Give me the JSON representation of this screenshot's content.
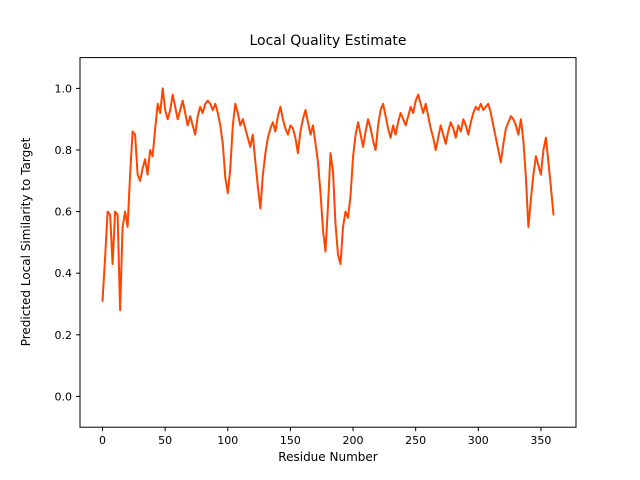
{
  "figure": {
    "title": "Local Quality Estimate",
    "xlabel": "Residue Number",
    "ylabel": "Predicted Local Similarity to Target"
  },
  "chart_data": {
    "type": "line",
    "title": "Local Quality Estimate",
    "xlabel": "Residue Number",
    "ylabel": "Predicted Local Similarity to Target",
    "legend": null,
    "grid": false,
    "line_color": "#ff4500",
    "line_width": 2,
    "xlim": [
      -18,
      378
    ],
    "ylim": [
      -0.1,
      1.1
    ],
    "xticks": [
      0,
      50,
      100,
      150,
      200,
      250,
      300,
      350
    ],
    "ytick_labels": [
      "0.0",
      "0.2",
      "0.4",
      "0.6",
      "0.8",
      "1.0"
    ],
    "x": [
      0,
      2,
      4,
      6,
      8,
      10,
      12,
      14,
      16,
      18,
      20,
      22,
      24,
      26,
      28,
      30,
      32,
      34,
      36,
      38,
      40,
      42,
      44,
      46,
      48,
      50,
      52,
      54,
      56,
      58,
      60,
      62,
      64,
      66,
      68,
      70,
      72,
      74,
      76,
      78,
      80,
      82,
      84,
      86,
      88,
      90,
      92,
      94,
      96,
      98,
      100,
      102,
      104,
      106,
      108,
      110,
      112,
      114,
      116,
      118,
      120,
      122,
      124,
      126,
      128,
      130,
      132,
      134,
      136,
      138,
      140,
      142,
      144,
      146,
      148,
      150,
      152,
      154,
      156,
      158,
      160,
      162,
      164,
      166,
      168,
      170,
      172,
      174,
      176,
      178,
      180,
      182,
      184,
      186,
      188,
      190,
      192,
      194,
      196,
      198,
      200,
      202,
      204,
      206,
      208,
      210,
      212,
      214,
      216,
      218,
      220,
      222,
      224,
      226,
      228,
      230,
      232,
      234,
      236,
      238,
      240,
      242,
      244,
      246,
      248,
      250,
      252,
      254,
      256,
      258,
      260,
      262,
      264,
      266,
      268,
      270,
      272,
      274,
      276,
      278,
      280,
      282,
      284,
      286,
      288,
      290,
      292,
      294,
      296,
      298,
      300,
      302,
      304,
      306,
      308,
      310,
      312,
      314,
      316,
      318,
      320,
      322,
      324,
      326,
      328,
      330,
      332,
      334,
      336,
      338,
      340,
      342,
      344,
      346,
      348,
      350,
      352,
      354,
      356,
      358,
      360
    ],
    "y": [
      0.31,
      0.45,
      0.6,
      0.59,
      0.43,
      0.6,
      0.59,
      0.28,
      0.55,
      0.6,
      0.55,
      0.72,
      0.86,
      0.85,
      0.72,
      0.7,
      0.74,
      0.77,
      0.72,
      0.8,
      0.78,
      0.87,
      0.95,
      0.92,
      1.0,
      0.93,
      0.9,
      0.93,
      0.98,
      0.94,
      0.9,
      0.93,
      0.96,
      0.92,
      0.88,
      0.91,
      0.88,
      0.85,
      0.91,
      0.94,
      0.92,
      0.95,
      0.96,
      0.95,
      0.93,
      0.95,
      0.92,
      0.88,
      0.82,
      0.71,
      0.66,
      0.74,
      0.88,
      0.95,
      0.92,
      0.88,
      0.9,
      0.87,
      0.84,
      0.81,
      0.85,
      0.76,
      0.68,
      0.61,
      0.72,
      0.79,
      0.84,
      0.87,
      0.89,
      0.86,
      0.91,
      0.94,
      0.9,
      0.87,
      0.85,
      0.88,
      0.87,
      0.84,
      0.79,
      0.86,
      0.9,
      0.93,
      0.89,
      0.85,
      0.88,
      0.82,
      0.76,
      0.66,
      0.54,
      0.47,
      0.62,
      0.79,
      0.73,
      0.56,
      0.46,
      0.43,
      0.55,
      0.6,
      0.58,
      0.65,
      0.78,
      0.85,
      0.89,
      0.85,
      0.81,
      0.86,
      0.9,
      0.87,
      0.83,
      0.8,
      0.88,
      0.93,
      0.95,
      0.91,
      0.87,
      0.84,
      0.88,
      0.85,
      0.89,
      0.92,
      0.9,
      0.88,
      0.91,
      0.94,
      0.92,
      0.96,
      0.98,
      0.95,
      0.92,
      0.95,
      0.91,
      0.87,
      0.84,
      0.8,
      0.84,
      0.88,
      0.85,
      0.82,
      0.86,
      0.89,
      0.87,
      0.84,
      0.88,
      0.86,
      0.9,
      0.88,
      0.85,
      0.89,
      0.92,
      0.94,
      0.93,
      0.95,
      0.93,
      0.94,
      0.95,
      0.92,
      0.88,
      0.84,
      0.8,
      0.76,
      0.82,
      0.87,
      0.89,
      0.91,
      0.9,
      0.88,
      0.85,
      0.9,
      0.83,
      0.71,
      0.55,
      0.64,
      0.72,
      0.78,
      0.75,
      0.72,
      0.8,
      0.84,
      0.76,
      0.68,
      0.59
    ]
  }
}
